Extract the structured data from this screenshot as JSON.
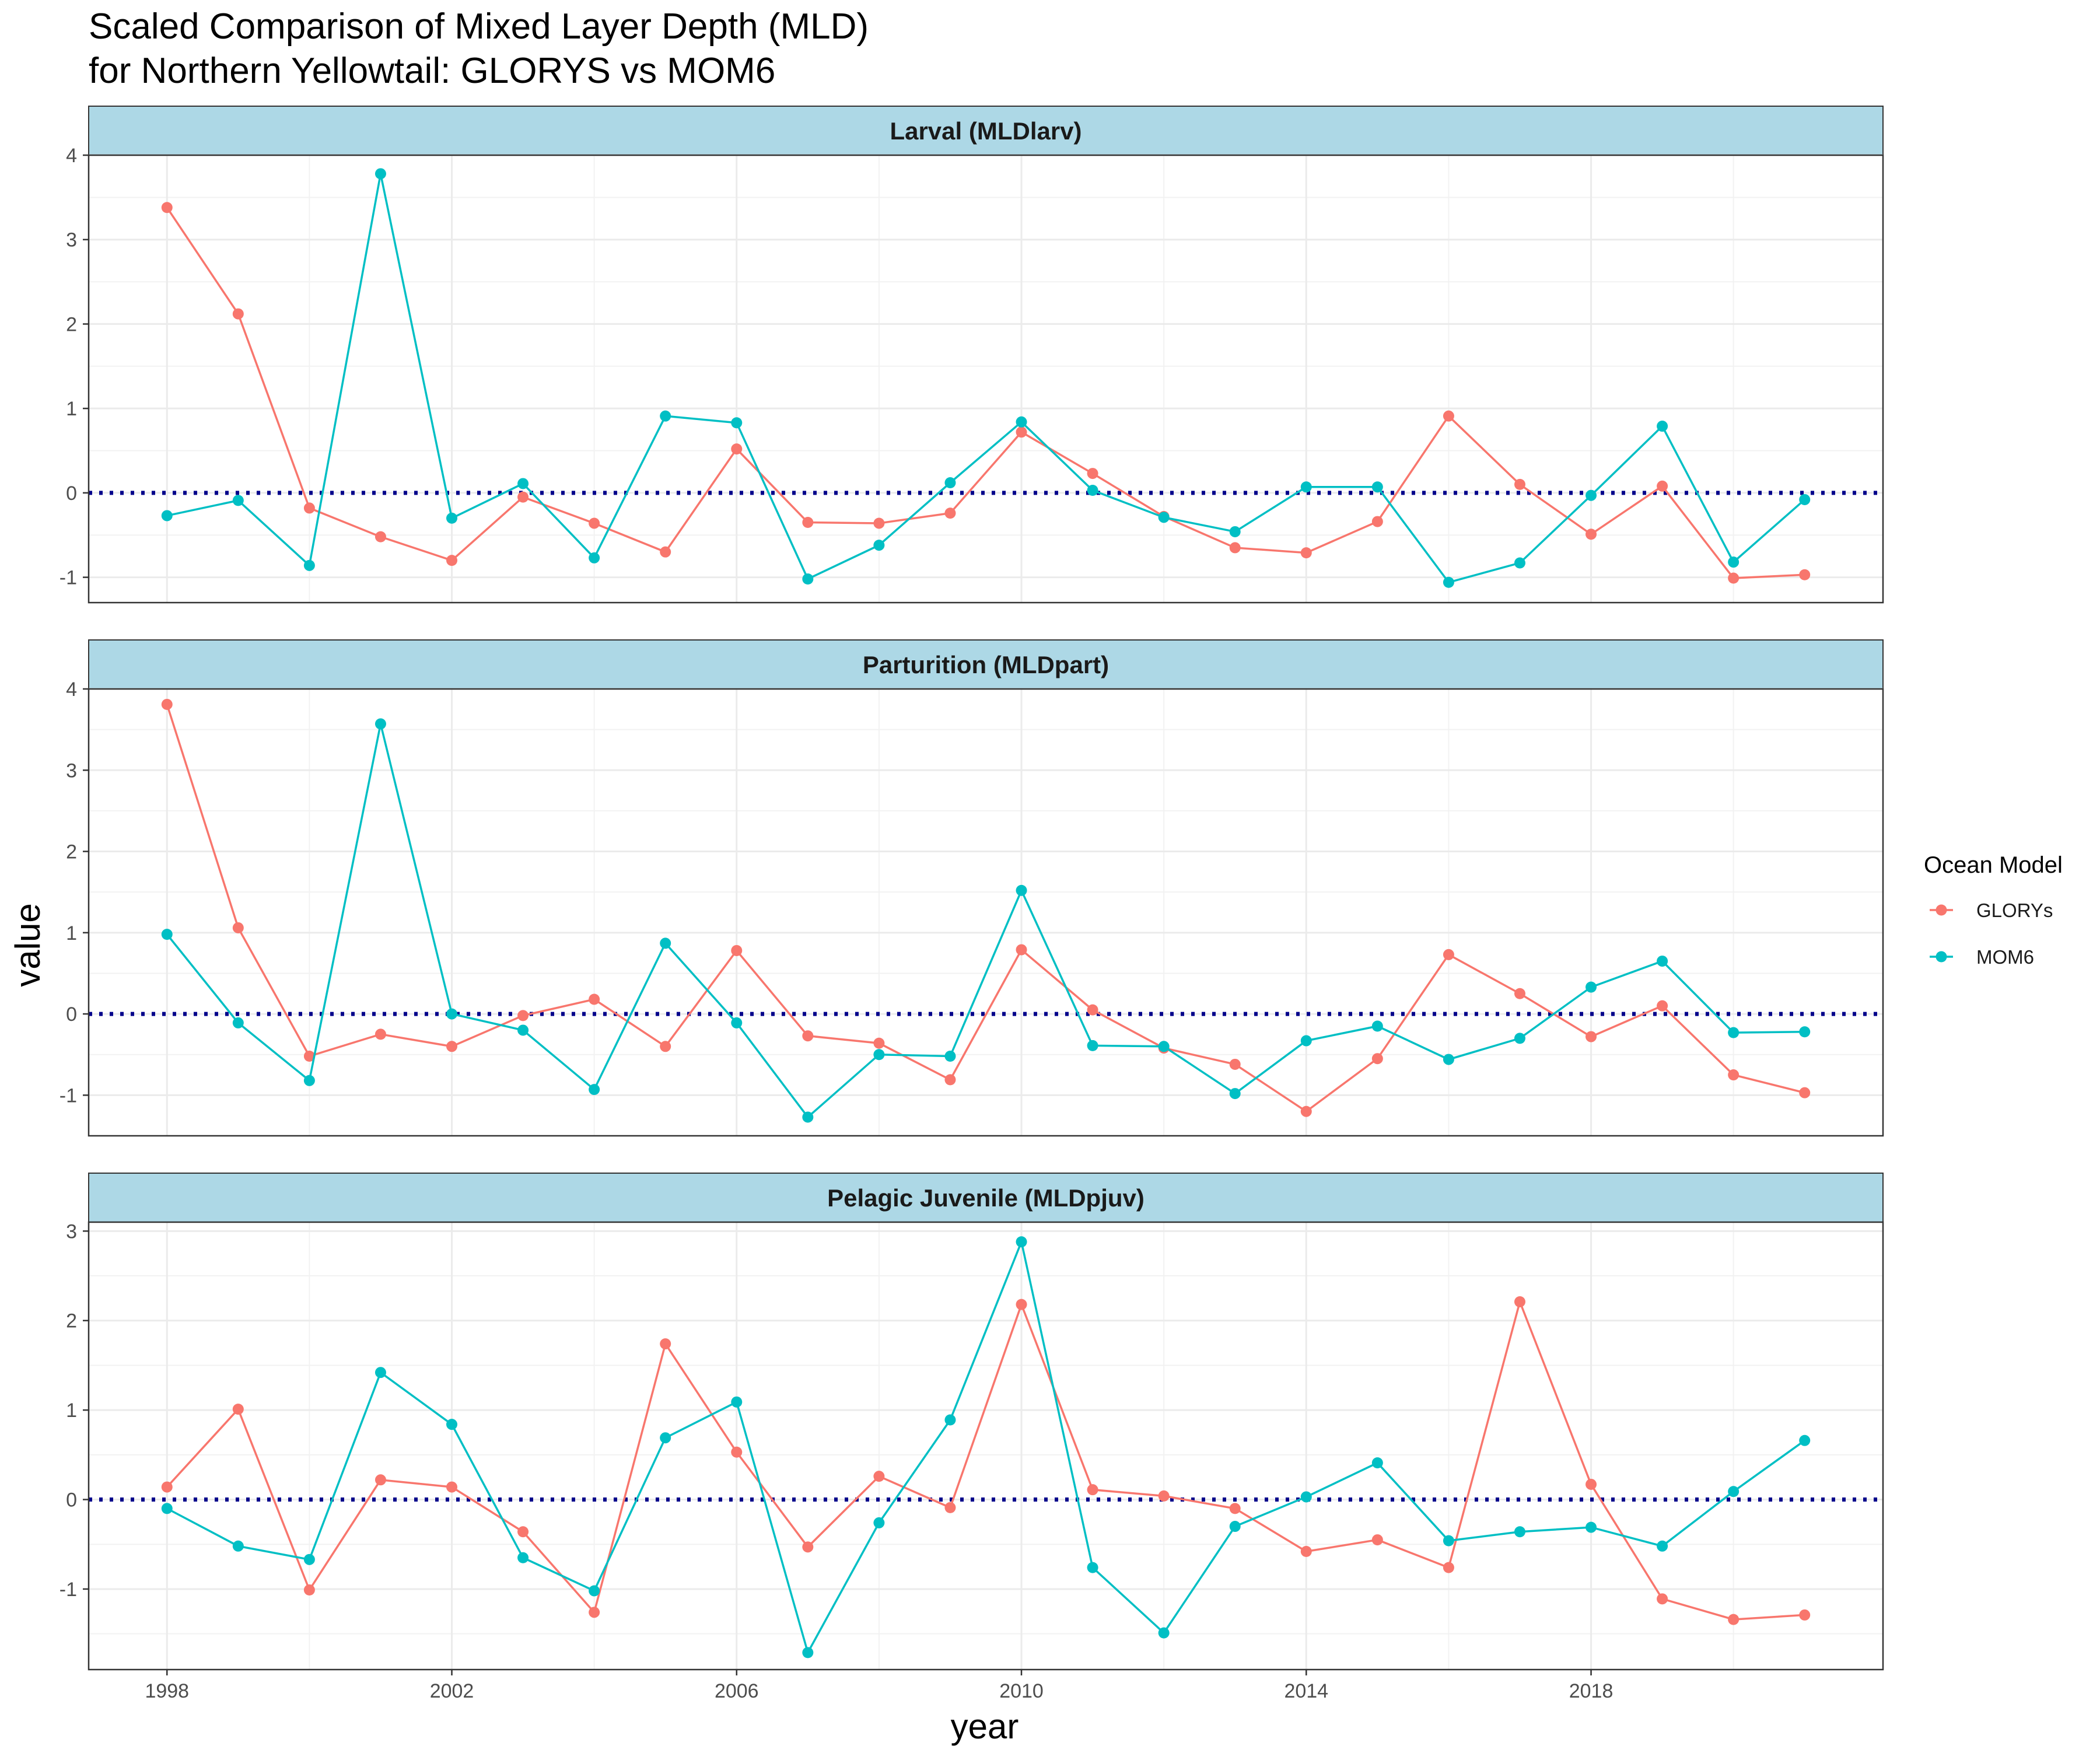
{
  "title_line1": "Scaled Comparison of Mixed Layer Depth (MLD)",
  "title_line2": "for Northern Yellowtail: GLORYS vs MOM6",
  "xlabel": "year",
  "ylabel": "value",
  "legend": {
    "title": "Ocean Model",
    "placement": "right"
  },
  "colors": {
    "GLORYs": "#F8766D",
    "MOM6": "#00BFC4",
    "reference_line": "#00008B",
    "strip_fill": "#ADD8E6"
  },
  "chart_data": {
    "type": "line",
    "reference_line_y": 0,
    "x_ticks": [
      1998,
      2002,
      2006,
      2010,
      2014,
      2018
    ],
    "x": [
      1998,
      1999,
      2000,
      2001,
      2002,
      2003,
      2004,
      2005,
      2006,
      2007,
      2008,
      2009,
      2010,
      2011,
      2012,
      2013,
      2014,
      2015,
      2016,
      2017,
      2018,
      2019,
      2020,
      2021
    ],
    "xlim": [
      1996.9,
      2022.1
    ],
    "panels": [
      {
        "label": "Larval (MLDlarv)",
        "ylim": [
          -1.3,
          4.0
        ],
        "y_ticks": [
          -1,
          0,
          1,
          2,
          3,
          4
        ],
        "series": [
          {
            "name": "GLORYs",
            "values": [
              3.38,
              2.12,
              -0.18,
              -0.52,
              -0.8,
              -0.05,
              -0.36,
              -0.7,
              0.52,
              -0.35,
              -0.36,
              -0.24,
              0.72,
              0.23,
              -0.28,
              -0.65,
              -0.71,
              -0.34,
              0.91,
              0.1,
              -0.49,
              0.08,
              -1.01,
              -0.97
            ]
          },
          {
            "name": "MOM6",
            "values": [
              -0.27,
              -0.09,
              -0.86,
              3.78,
              -0.3,
              0.11,
              -0.77,
              0.91,
              0.83,
              -1.02,
              -0.62,
              0.12,
              0.84,
              0.03,
              -0.29,
              -0.46,
              0.07,
              0.07,
              -1.06,
              -0.83,
              -0.03,
              0.79,
              -0.82,
              -0.08
            ]
          }
        ]
      },
      {
        "label": "Parturition (MLDpart)",
        "ylim": [
          -1.5,
          4.0
        ],
        "y_ticks": [
          -1,
          0,
          1,
          2,
          3,
          4
        ],
        "series": [
          {
            "name": "GLORYs",
            "values": [
              3.81,
              1.06,
              -0.52,
              -0.25,
              -0.4,
              -0.02,
              0.18,
              -0.4,
              0.78,
              -0.27,
              -0.36,
              -0.81,
              0.79,
              0.05,
              -0.42,
              -0.62,
              -1.2,
              -0.55,
              0.73,
              0.25,
              -0.28,
              0.1,
              -0.75,
              -0.97
            ]
          },
          {
            "name": "MOM6",
            "values": [
              0.98,
              -0.11,
              -0.82,
              3.57,
              0.0,
              -0.2,
              -0.93,
              0.87,
              -0.11,
              -1.27,
              -0.5,
              -0.52,
              1.52,
              -0.39,
              -0.4,
              -0.98,
              -0.33,
              -0.15,
              -0.56,
              -0.3,
              0.33,
              0.65,
              -0.23,
              -0.22
            ]
          }
        ]
      },
      {
        "label": "Pelagic Juvenile (MLDpjuv)",
        "ylim": [
          -1.9,
          3.1
        ],
        "y_ticks": [
          -1,
          0,
          1,
          2,
          3
        ],
        "series": [
          {
            "name": "GLORYs",
            "values": [
              0.14,
              1.01,
              -1.01,
              0.22,
              0.14,
              -0.36,
              -1.26,
              1.74,
              0.53,
              -0.53,
              0.26,
              -0.09,
              2.18,
              0.11,
              0.04,
              -0.1,
              -0.58,
              -0.45,
              -0.76,
              2.21,
              0.17,
              -1.11,
              -1.34,
              -1.29
            ]
          },
          {
            "name": "MOM6",
            "values": [
              -0.1,
              -0.52,
              -0.67,
              1.42,
              0.84,
              -0.65,
              -1.02,
              0.69,
              1.09,
              -1.71,
              -0.26,
              0.89,
              2.88,
              -0.76,
              -1.49,
              -0.3,
              0.03,
              0.41,
              -0.46,
              -0.36,
              -0.31,
              -0.52,
              0.09,
              0.66
            ]
          }
        ]
      }
    ]
  }
}
